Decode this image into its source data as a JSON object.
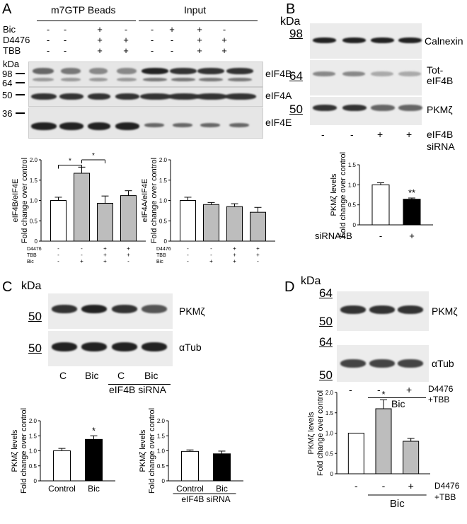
{
  "panels": {
    "A": {
      "label": "A",
      "kda": "kDa",
      "group1": "m7GTP Beads",
      "group2": "Input",
      "row_labels": [
        "Bic",
        "D4476",
        "TBB"
      ],
      "conditions": {
        "Bic": [
          "-",
          "-",
          "+",
          "-",
          "-",
          "+",
          "+",
          "-"
        ],
        "D4476": [
          "-",
          "-",
          "+",
          "+",
          "-",
          "-",
          "+",
          "+"
        ],
        "TBB": [
          "-",
          "-",
          "+",
          "+",
          "-",
          "-",
          "+",
          "+"
        ]
      },
      "markers": [
        "98",
        "64",
        "50",
        "36"
      ],
      "blots": [
        "eIF4B",
        "eIF4A",
        "eIF4E"
      ]
    },
    "B": {
      "label": "B",
      "kda": "kDa",
      "markers": [
        "98",
        "64",
        "50"
      ],
      "blots": [
        "Calnexin",
        "Tot-",
        "eIF4B",
        "PKMζ"
      ],
      "signs": [
        "-",
        "-",
        "+",
        "+"
      ],
      "treatment": [
        "eIF4B",
        "siRNA"
      ]
    },
    "C": {
      "label": "C",
      "kda": "kDa",
      "markers": [
        "50",
        "50"
      ],
      "blots": [
        "PKMζ",
        "αTub"
      ],
      "lanes": [
        "C",
        "Bic",
        "C",
        "Bic"
      ],
      "treatment": "eIF4B siRNA"
    },
    "D": {
      "label": "D",
      "kda": "kDa",
      "markers": [
        "64",
        "50",
        "64",
        "50"
      ],
      "blots": [
        "PKMζ",
        "αTub"
      ],
      "signs": [
        "-",
        "-",
        "+"
      ],
      "bic": "Bic",
      "treatment": [
        "D4476",
        "+TBB"
      ]
    }
  },
  "chart_data": [
    {
      "id": "A-left",
      "type": "bar",
      "ylabel": "eIF4B/eIF4E\nFold change over control",
      "ylim": [
        0,
        2
      ],
      "yticks": [
        "0",
        "0.5",
        "1.0",
        "1.5",
        "2.0"
      ],
      "values": [
        1.0,
        1.67,
        0.93,
        1.12
      ],
      "errors": [
        0.08,
        0.15,
        0.18,
        0.12
      ],
      "colors": [
        "#ffffff",
        "#bdbdbd",
        "#bdbdbd",
        "#bdbdbd"
      ],
      "row_labels": [
        "D4476",
        "TBB",
        "Bic"
      ],
      "signs": [
        [
          "-",
          "-",
          "+",
          "+"
        ],
        [
          "-",
          "-",
          "+",
          "+"
        ],
        [
          "-",
          "+",
          "+",
          "-"
        ]
      ],
      "annotations": [
        "*",
        "*"
      ]
    },
    {
      "id": "A-right",
      "type": "bar",
      "ylabel": "eIF4A/eIF4E\nFold change over control",
      "ylim": [
        0,
        2
      ],
      "yticks": [
        "0",
        "0.5",
        "1.0",
        "1.5",
        "2.0"
      ],
      "values": [
        1.0,
        0.9,
        0.85,
        0.71
      ],
      "errors": [
        0.08,
        0.05,
        0.07,
        0.12
      ],
      "colors": [
        "#ffffff",
        "#bdbdbd",
        "#bdbdbd",
        "#bdbdbd"
      ],
      "row_labels": [
        "D4476",
        "TBB",
        "Bic"
      ],
      "signs": [
        [
          "-",
          "-",
          "+",
          "+"
        ],
        [
          "-",
          "-",
          "+",
          "+"
        ],
        [
          "-",
          "+",
          "+",
          "-"
        ]
      ]
    },
    {
      "id": "B",
      "type": "bar",
      "ylabel": "PKMζ levels\nFold change over control",
      "ylim": [
        0,
        1.5
      ],
      "yticks": [
        "0",
        "0.5",
        "1.0",
        "1.5"
      ],
      "values": [
        1.0,
        0.64
      ],
      "errors": [
        0.05,
        0.03
      ],
      "colors": [
        "#ffffff",
        "#000000"
      ],
      "xlabel_prefix": "siRNA4B",
      "signs": [
        "-",
        "+"
      ],
      "annotations": [
        "**"
      ]
    },
    {
      "id": "C-left",
      "type": "bar",
      "ylabel": "PKMζ levels\nFold change over control",
      "ylim": [
        0,
        2
      ],
      "yticks": [
        "0",
        "0.5",
        "1.0",
        "1.5",
        "2.0"
      ],
      "categories": [
        "Control",
        "Bic"
      ],
      "values": [
        1.0,
        1.38
      ],
      "errors": [
        0.08,
        0.12
      ],
      "colors": [
        "#ffffff",
        "#000000"
      ],
      "annotations": [
        "*"
      ]
    },
    {
      "id": "C-right",
      "type": "bar",
      "ylabel": "PKMζ levels\nFold change over control",
      "ylim": [
        0,
        2
      ],
      "yticks": [
        "0",
        "0.5",
        "1.0",
        "1.5",
        "2.0"
      ],
      "categories": [
        "Control",
        "Bic"
      ],
      "xlabel": "eIF4B siRNA",
      "values": [
        0.98,
        0.9
      ],
      "errors": [
        0.05,
        0.09
      ],
      "colors": [
        "#ffffff",
        "#000000"
      ]
    },
    {
      "id": "D",
      "type": "bar",
      "ylabel": "PKMζ levels\nFold change over control",
      "ylim": [
        0,
        2
      ],
      "yticks": [
        "0",
        "0.5",
        "1.0",
        "1.5",
        "2.0"
      ],
      "values": [
        1.0,
        1.6,
        0.8
      ],
      "errors": [
        0.0,
        0.22,
        0.07
      ],
      "colors": [
        "#ffffff",
        "#bdbdbd",
        "#bdbdbd"
      ],
      "signs": [
        "-",
        "-",
        "+"
      ],
      "bic": "Bic",
      "treatment": [
        "D4476",
        "+TBB"
      ],
      "annotations": [
        "*"
      ]
    }
  ]
}
